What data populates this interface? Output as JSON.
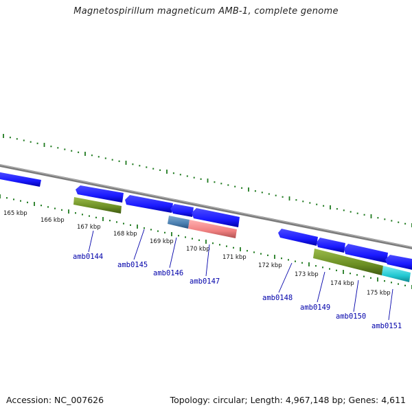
{
  "title": "Magnetospirillum magneticum AMB-1, complete genome",
  "footer": {
    "accession": "Accession: NC_007626",
    "summary": "Topology: circular; Length: 4,967,148 bp; Genes: 4,611"
  },
  "colors": {
    "backbone": "#8c8c8c",
    "tick": "#1f7a1f",
    "cds": "#1a1aff",
    "rna_olive": "#6b8e23",
    "steelblue": "#4a7fb0",
    "salmon": "#f08080",
    "cyan": "#22c8d2",
    "label": "#0000aa"
  },
  "map": {
    "kbp_labels": [
      "165 kbp",
      "166 kbp",
      "167 kbp",
      "168 kbp",
      "169 kbp",
      "170 kbp",
      "171 kbp",
      "172 kbp",
      "173 kbp",
      "174 kbp",
      "175 kbp"
    ],
    "genes": [
      {
        "label": "amb0144"
      },
      {
        "label": "amb0145"
      },
      {
        "label": "amb0146"
      },
      {
        "label": "amb0147"
      },
      {
        "label": "amb0148"
      },
      {
        "label": "amb0149"
      },
      {
        "label": "amb0150"
      },
      {
        "label": "amb0151"
      }
    ]
  }
}
